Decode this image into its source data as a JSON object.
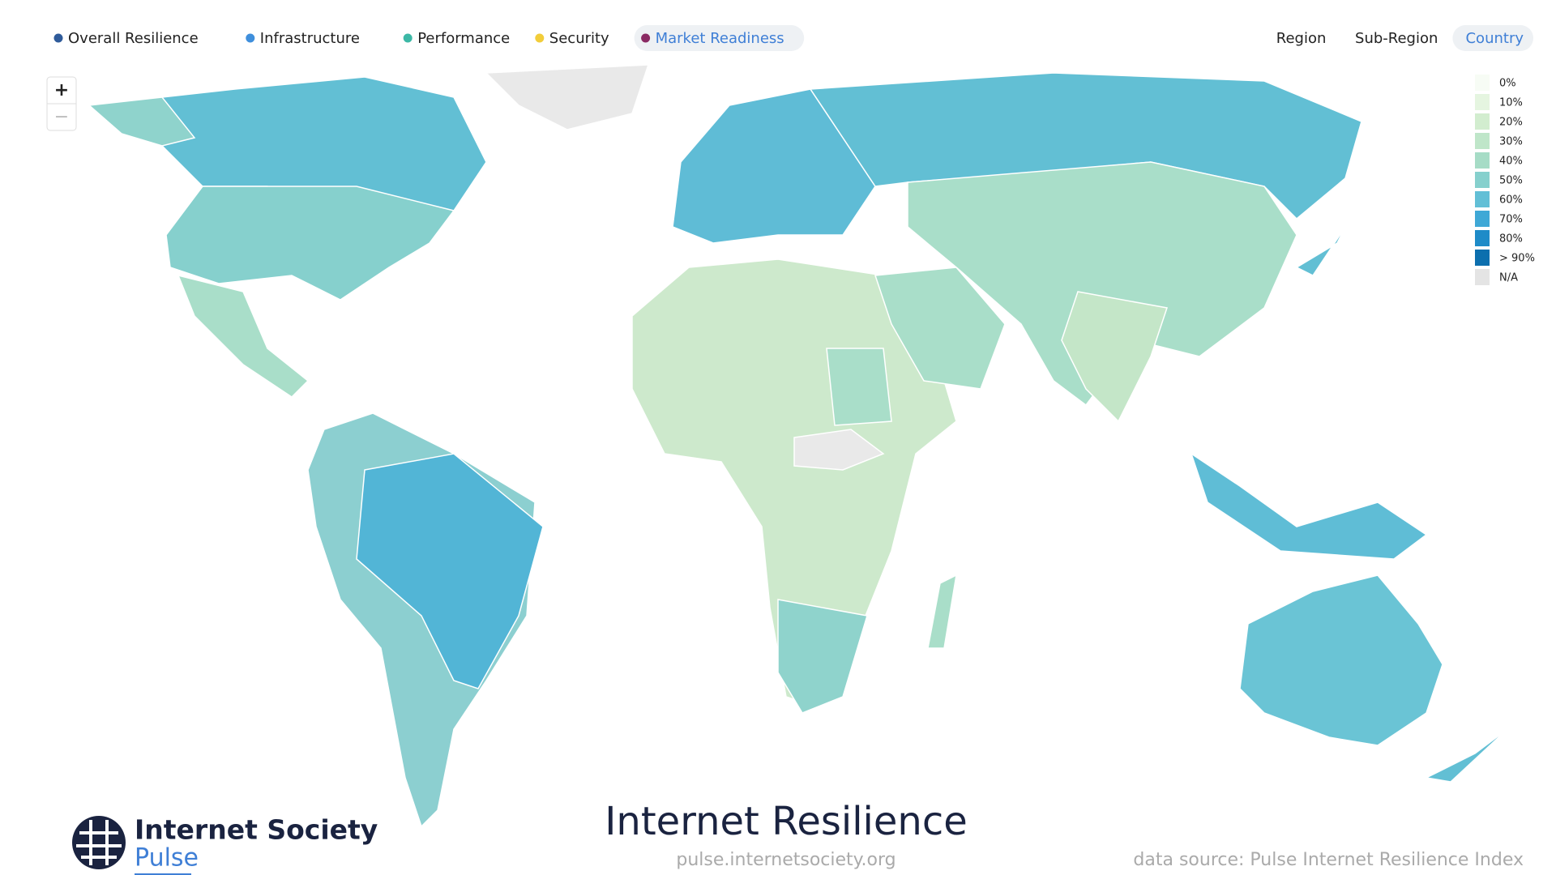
{
  "metric_tabs": [
    {
      "label": "Overall Resilience",
      "color": "#2f5b9a",
      "active": false
    },
    {
      "label": "Infrastructure",
      "color": "#3f8fdc",
      "active": false
    },
    {
      "label": "Performance",
      "color": "#3cb8a6",
      "active": false
    },
    {
      "label": "Security",
      "color": "#f2cd3a",
      "active": false
    },
    {
      "label": "Market Readiness",
      "color": "#8a2a63",
      "active": true
    }
  ],
  "level_tabs": [
    {
      "label": "Region",
      "active": false
    },
    {
      "label": "Sub-Region",
      "active": false
    },
    {
      "label": "Country",
      "active": true
    }
  ],
  "zoom": {
    "in": "+",
    "out": "−"
  },
  "legend": [
    {
      "label": "0%",
      "color": "#f7fcf5"
    },
    {
      "label": "10%",
      "color": "#e5f5e0"
    },
    {
      "label": "20%",
      "color": "#d2edcf"
    },
    {
      "label": "30%",
      "color": "#bfe6c9"
    },
    {
      "label": "40%",
      "color": "#a6dcc6"
    },
    {
      "label": "50%",
      "color": "#86d0cd"
    },
    {
      "label": "60%",
      "color": "#62bfd6"
    },
    {
      "label": "70%",
      "color": "#3fa8d6"
    },
    {
      "label": "80%",
      "color": "#1e8bc8"
    },
    {
      "label": "> 90%",
      "color": "#0c6fae"
    },
    {
      "label": "N/A",
      "color": "#e4e4e4"
    }
  ],
  "title": "Internet Resilience",
  "url": "pulse.internetsociety.org",
  "source": "data source: Pulse Internet Resilience Index",
  "logo": {
    "name": "Internet Society",
    "product": "Pulse"
  }
}
